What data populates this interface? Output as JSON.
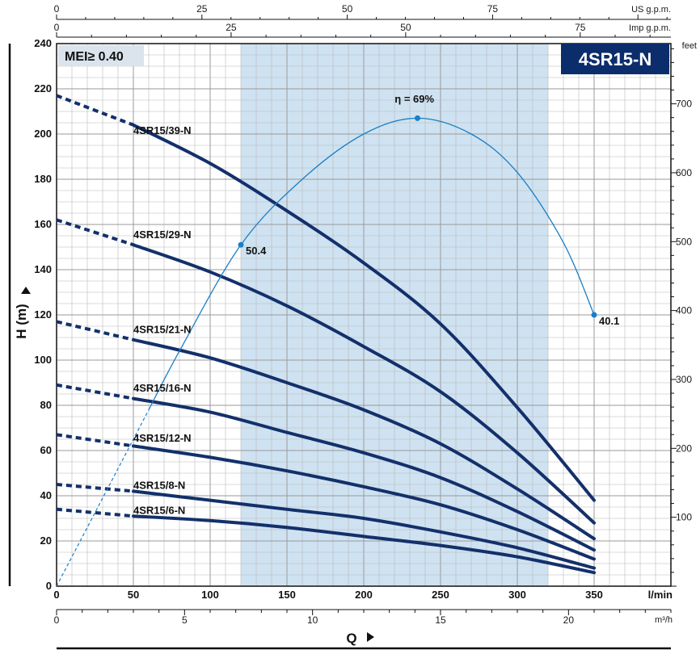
{
  "chart_data": {
    "type": "line",
    "title": "4SR15-N",
    "badge_note": "MEI≥ 0.40",
    "xlabel": "Q",
    "ylabel": "H (m)",
    "x_unit_primary": "l/min",
    "x_unit_m3h": "m³/h",
    "x_unit_us": "US g.p.m.",
    "x_unit_imp": "Imp g.p.m.",
    "y_unit_feet": "feet",
    "xlim": [
      0,
      400
    ],
    "ylim": [
      0,
      240
    ],
    "x_ticks_lmin": [
      0,
      50,
      100,
      150,
      200,
      250,
      300,
      350
    ],
    "x_ticks_m3h": [
      0,
      5,
      10,
      15,
      20
    ],
    "x_ticks_us": [
      0,
      25,
      50,
      75
    ],
    "x_ticks_imp": [
      0,
      25,
      50,
      75
    ],
    "y_ticks_m": [
      0,
      20,
      40,
      60,
      80,
      100,
      120,
      140,
      160,
      180,
      200,
      220,
      240
    ],
    "y_ticks_feet": [
      100,
      200,
      300,
      400,
      500,
      600,
      700
    ],
    "grid": true,
    "recommended_range_lmin": [
      120,
      320
    ],
    "colors": {
      "curve": "#13306b",
      "efficiency": "#1a7fc6",
      "band": "#cfe2f1",
      "badge": "#0c2d6b",
      "mei_bg": "#dbe4ec",
      "grid": "#b8b8b8"
    },
    "series": [
      {
        "name": "4SR15/39-N",
        "x": [
          0,
          50,
          100,
          150,
          200,
          250,
          300,
          350
        ],
        "y": [
          217,
          204,
          187,
          166,
          143,
          116,
          79,
          38
        ],
        "dashed_until": 50,
        "label_at": [
          50,
          200
        ]
      },
      {
        "name": "4SR15/29-N",
        "x": [
          0,
          50,
          100,
          150,
          200,
          250,
          300,
          350
        ],
        "y": [
          162,
          151,
          139,
          124,
          106,
          86,
          59,
          28
        ],
        "dashed_until": 50,
        "label_at": [
          50,
          154
        ]
      },
      {
        "name": "4SR15/21-N",
        "x": [
          0,
          50,
          100,
          150,
          200,
          250,
          300,
          350
        ],
        "y": [
          117,
          109,
          101,
          90,
          78,
          63,
          43,
          21
        ],
        "dashed_until": 50,
        "label_at": [
          50,
          112
        ]
      },
      {
        "name": "4SR15/16-N",
        "x": [
          0,
          50,
          100,
          150,
          200,
          250,
          300,
          350
        ],
        "y": [
          89,
          83,
          77,
          68,
          59,
          48,
          33,
          16
        ],
        "dashed_until": 50,
        "label_at": [
          50,
          86
        ]
      },
      {
        "name": "4SR15/12-N",
        "x": [
          0,
          50,
          100,
          150,
          200,
          250,
          300,
          350
        ],
        "y": [
          67,
          62,
          57,
          51,
          44,
          36,
          25,
          12
        ],
        "dashed_until": 50,
        "label_at": [
          50,
          64
        ]
      },
      {
        "name": "4SR15/8-N",
        "x": [
          0,
          50,
          100,
          150,
          200,
          250,
          300,
          350
        ],
        "y": [
          45,
          42,
          38,
          34,
          30,
          24,
          17,
          8
        ],
        "dashed_until": 50,
        "label_at": [
          50,
          43
        ]
      },
      {
        "name": "4SR15/6-N",
        "x": [
          0,
          50,
          100,
          150,
          200,
          250,
          300,
          350
        ],
        "y": [
          34,
          31,
          29,
          26,
          22,
          18,
          13,
          6
        ],
        "dashed_until": 50,
        "label_at": [
          50,
          32
        ]
      }
    ],
    "efficiency_curve": {
      "x": [
        0,
        40,
        80,
        120,
        160,
        200,
        235,
        270,
        300,
        330,
        350
      ],
      "y": [
        0,
        52,
        104,
        151,
        180,
        200,
        207,
        200,
        183,
        152,
        120
      ],
      "dashed_until": 60,
      "annotations": [
        {
          "x": 120,
          "y": 151,
          "label": "50.4",
          "show_label": true
        },
        {
          "x": 235,
          "y": 207,
          "label": "η = 69%",
          "show_label": false
        },
        {
          "x": 350,
          "y": 120,
          "label": "40.1",
          "show_label": true
        }
      ],
      "peak_label": "η = 69%",
      "peak_label_pos": [
        233,
        214
      ]
    }
  }
}
